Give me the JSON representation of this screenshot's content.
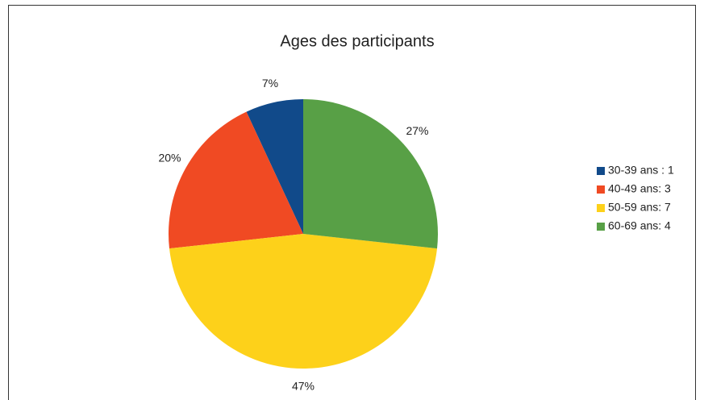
{
  "chart_data": {
    "type": "pie",
    "title": "Ages des participants",
    "categories": [
      "30-39 ans : 1",
      "40-49 ans: 3",
      "50-59 ans: 7",
      "60-69 ans: 4"
    ],
    "values": [
      7,
      20,
      47,
      27
    ],
    "value_labels": [
      "7%",
      "20%",
      "47%",
      "27%"
    ],
    "colors": [
      "#114a8a",
      "#f04a23",
      "#fdd11a",
      "#58a046"
    ],
    "legend": "right"
  }
}
